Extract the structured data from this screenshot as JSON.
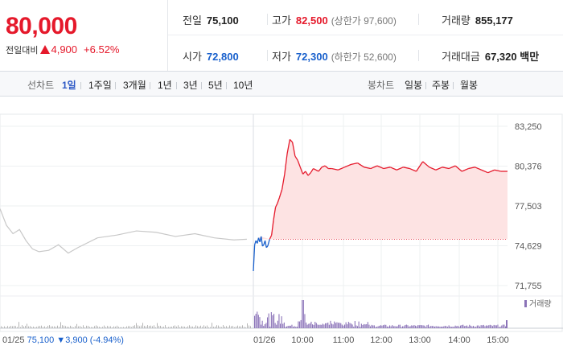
{
  "quote": {
    "price": "80,000",
    "change_label": "전일대비",
    "change": "4,900",
    "change_pct": "+6.52%",
    "prev_close_label": "전일",
    "prev_close": "75,100",
    "open_label": "시가",
    "open": "72,800",
    "high_label": "고가",
    "high": "82,500",
    "upper_limit": "(상한가 97,600)",
    "low_label": "저가",
    "low": "72,300",
    "lower_limit": "(하한가 52,600)",
    "volume_label": "거래량",
    "volume": "855,177",
    "value_label": "거래대금",
    "value": "67,320",
    "value_unit": "백만"
  },
  "tabs": {
    "line_label": "선차트",
    "line": [
      "1일",
      "1주일",
      "3개월",
      "1년",
      "3년",
      "5년",
      "10년"
    ],
    "candle_label": "봉차트",
    "candle": [
      "일봉",
      "주봉",
      "월봉"
    ]
  },
  "colors": {
    "up": "#e5192b",
    "down": "#1960cc",
    "prev_day": "#c8c8c8",
    "volume": "#8b73b8",
    "fill": "#fde3e3"
  },
  "chart_data": {
    "type": "line",
    "y_ticks": [
      "83,250",
      "80,376",
      "77,503",
      "74,629",
      "71,755"
    ],
    "ylim": [
      71755,
      83250
    ],
    "reference_price": 75100,
    "x_tick_labels": [
      "01/25",
      "01/26",
      "10:00",
      "11:00",
      "12:00",
      "13:00",
      "14:00",
      "15:00"
    ],
    "prev_day_summary": {
      "date": "01/25",
      "close": "75,100",
      "change": "3,900",
      "change_pct": "(-4.94%)"
    },
    "volume_legend": "거래량",
    "series": [
      {
        "date": "01/25",
        "x": [
          "09:00",
          "09:10",
          "09:20",
          "09:30",
          "09:40",
          "09:50",
          "10:00",
          "10:15",
          "10:30",
          "10:45",
          "11:00",
          "11:30",
          "12:00",
          "12:30",
          "13:00",
          "13:30",
          "14:00",
          "14:30",
          "15:00",
          "15:20"
        ],
        "values": [
          77300,
          76100,
          75500,
          75800,
          75000,
          74400,
          74200,
          74300,
          74700,
          74100,
          74500,
          75200,
          75400,
          75700,
          75600,
          75300,
          75500,
          75200,
          75050,
          75100
        ]
      },
      {
        "date": "01/26",
        "x": [
          "09:00",
          "09:02",
          "09:04",
          "09:06",
          "09:08",
          "09:10",
          "09:12",
          "09:14",
          "09:16",
          "09:18",
          "09:20",
          "09:22",
          "09:25",
          "09:28",
          "09:31",
          "09:34",
          "09:37",
          "09:40",
          "09:44",
          "09:48",
          "09:52",
          "09:56",
          "10:00",
          "10:04",
          "10:08",
          "10:12",
          "10:16",
          "10:20",
          "10:24",
          "10:28",
          "10:32",
          "10:36",
          "10:40",
          "10:45",
          "10:50",
          "10:55",
          "11:00",
          "11:10",
          "11:20",
          "11:30",
          "11:40",
          "11:50",
          "12:00",
          "12:10",
          "12:20",
          "12:30",
          "12:40",
          "12:50",
          "13:00",
          "13:10",
          "13:20",
          "13:30",
          "13:40",
          "13:50",
          "14:00",
          "14:10",
          "14:20",
          "14:30",
          "14:40",
          "14:50",
          "15:00",
          "15:10",
          "15:20",
          "15:30"
        ],
        "values": [
          72800,
          74700,
          75000,
          74800,
          75200,
          74900,
          75300,
          74600,
          74700,
          75000,
          74500,
          74600,
          75100,
          75400,
          76500,
          77400,
          77700,
          78100,
          78700,
          79800,
          81300,
          82300,
          82100,
          81100,
          80800,
          80300,
          79800,
          80000,
          79700,
          79900,
          80200,
          80100,
          80000,
          80300,
          80400,
          80200,
          80200,
          80100,
          80300,
          80500,
          80600,
          80300,
          80200,
          80400,
          80200,
          80300,
          80100,
          80300,
          80200,
          80000,
          80700,
          80300,
          80100,
          80300,
          80200,
          80400,
          80000,
          80200,
          80300,
          80100,
          79900,
          80100,
          80000,
          80000
        ]
      }
    ]
  }
}
